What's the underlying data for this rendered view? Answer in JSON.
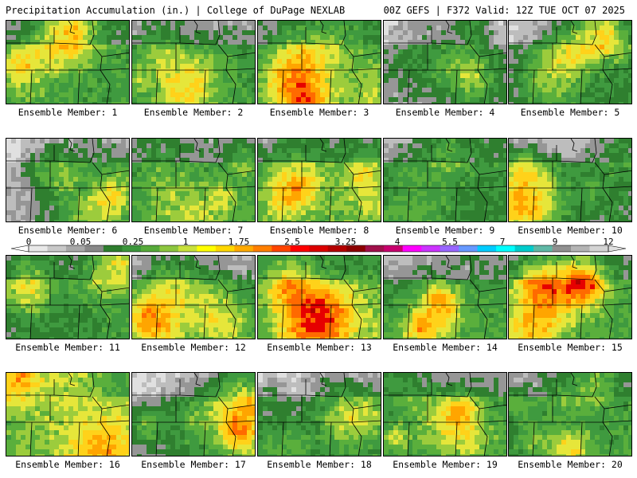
{
  "header": {
    "left": "Precipitation Accumulation (in.) | College of DuPage NEXLAB",
    "right": "00Z GEFS | F372 Valid: 12Z TUE OCT 07 2025"
  },
  "members": [
    {
      "label": "Ensemble Member: 1"
    },
    {
      "label": "Ensemble Member: 2"
    },
    {
      "label": "Ensemble Member: 3"
    },
    {
      "label": "Ensemble Member: 4"
    },
    {
      "label": "Ensemble Member: 5"
    },
    {
      "label": "Ensemble Member: 6"
    },
    {
      "label": "Ensemble Member: 7"
    },
    {
      "label": "Ensemble Member: 8"
    },
    {
      "label": "Ensemble Member: 9"
    },
    {
      "label": "Ensemble Member: 10"
    },
    {
      "label": "Ensemble Member: 11"
    },
    {
      "label": "Ensemble Member: 12"
    },
    {
      "label": "Ensemble Member: 13"
    },
    {
      "label": "Ensemble Member: 14"
    },
    {
      "label": "Ensemble Member: 15"
    },
    {
      "label": "Ensemble Member: 16"
    },
    {
      "label": "Ensemble Member: 17"
    },
    {
      "label": "Ensemble Member: 18"
    },
    {
      "label": "Ensemble Member: 19"
    },
    {
      "label": "Ensemble Member: 20"
    }
  ],
  "colorbar": {
    "ticks": [
      "0",
      "0.05",
      "0.25",
      "1",
      "1.75",
      "2.5",
      "3.25",
      "4",
      "5.5",
      "7",
      "9",
      "12"
    ],
    "colors": [
      "#e8e8e8",
      "#c8c8c8",
      "#a8a8a8",
      "#888888",
      "#2e7d2e",
      "#3c963c",
      "#56aa3a",
      "#8cc63f",
      "#c8e03c",
      "#ffff00",
      "#ffd700",
      "#ffaa00",
      "#ff7f00",
      "#ff4500",
      "#ff0000",
      "#dc0000",
      "#b40000",
      "#8c0000",
      "#a0104a",
      "#c8006e",
      "#ff00ff",
      "#cc33ff",
      "#9966ff",
      "#6699ff",
      "#00ccff",
      "#00ffff",
      "#00cccc",
      "#5fb8a6",
      "#909090",
      "#b4b4b4",
      "#d4d4d4"
    ]
  }
}
